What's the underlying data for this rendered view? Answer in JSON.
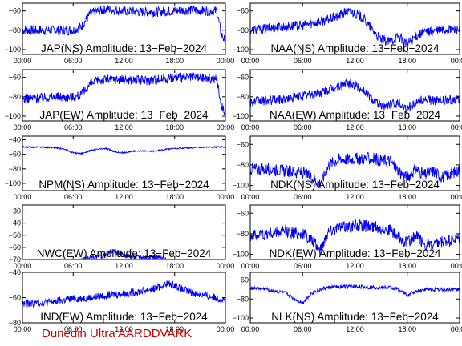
{
  "footer": {
    "text": "Dunedin Ultra AARDDVARK",
    "color": "#cc0000"
  },
  "colors": {
    "trace": "#0000ff",
    "axis": "#000000",
    "label": "#000000"
  },
  "chart_data": [
    {
      "type": "line",
      "title": "JAP(NS) Amplitude: 13−Feb−2024",
      "x_tick_labels": [
        "00:00",
        "06:00",
        "12:00",
        "18:00",
        "00:00"
      ],
      "x_ticks_hours": [
        0,
        6,
        12,
        18,
        24
      ],
      "ylim": [
        -105,
        -52
      ],
      "y_ticks": [
        -100,
        -80,
        -60
      ],
      "y_tick_labels": [
        "−100",
        "−80",
        "−60"
      ],
      "series": [
        {
          "x": [
            0,
            2,
            4,
            5,
            6,
            7,
            8,
            9,
            10,
            12,
            14,
            16,
            18,
            20,
            22,
            23,
            23.5,
            24
          ],
          "y": [
            -80,
            -80,
            -80,
            -80,
            -80,
            -76,
            -63,
            -60,
            -58,
            -60,
            -61,
            -61,
            -60,
            -59,
            -60,
            -60,
            -84,
            -92
          ],
          "band": 5
        }
      ]
    },
    {
      "type": "line",
      "title": "NAA(NS) Amplitude: 13−Feb−2024",
      "x_tick_labels": [
        "00:00",
        "06:00",
        "12:00",
        "18:00",
        "00:00"
      ],
      "x_ticks_hours": [
        0,
        6,
        12,
        18,
        24
      ],
      "ylim": [
        -105,
        -52
      ],
      "y_ticks": [
        -100,
        -80,
        -60
      ],
      "y_tick_labels": [
        "−100",
        "−80",
        "−60"
      ],
      "series": [
        {
          "x": [
            0,
            2,
            4,
            6,
            8,
            10,
            11,
            12,
            13,
            14,
            15,
            16,
            17,
            18,
            19,
            20,
            22,
            24
          ],
          "y": [
            -80,
            -78,
            -76,
            -75,
            -71,
            -66,
            -61,
            -62,
            -68,
            -80,
            -90,
            -92,
            -86,
            -94,
            -86,
            -82,
            -80,
            -79
          ],
          "band": 5
        }
      ]
    },
    {
      "type": "line",
      "title": "JAP(EW) Amplitude: 13−Feb−2024",
      "x_tick_labels": [
        "00:00",
        "06:00",
        "12:00",
        "18:00",
        "00:00"
      ],
      "x_ticks_hours": [
        0,
        6,
        12,
        18,
        24
      ],
      "ylim": [
        -105,
        -52
      ],
      "y_ticks": [
        -100,
        -80,
        -60
      ],
      "y_tick_labels": [
        "−100",
        "−80",
        "−60"
      ],
      "series": [
        {
          "x": [
            0,
            2,
            4,
            5,
            6,
            7,
            8,
            9,
            10,
            12,
            14,
            16,
            18,
            20,
            22,
            23,
            23.5,
            24
          ],
          "y": [
            -82,
            -81,
            -80,
            -80,
            -80,
            -78,
            -67,
            -63,
            -62,
            -62,
            -63,
            -62,
            -60,
            -60,
            -61,
            -62,
            -88,
            -96
          ],
          "band": 5
        }
      ]
    },
    {
      "type": "line",
      "title": "NAA(EW) Amplitude: 13−Feb−2024",
      "x_tick_labels": [
        "00:00",
        "06:00",
        "12:00",
        "18:00",
        "00:00"
      ],
      "x_ticks_hours": [
        0,
        6,
        12,
        18,
        24
      ],
      "ylim": [
        -105,
        -52
      ],
      "y_ticks": [
        -100,
        -80,
        -60
      ],
      "y_tick_labels": [
        "−100",
        "−80",
        "−60"
      ],
      "series": [
        {
          "x": [
            0,
            2,
            4,
            6,
            8,
            10,
            11,
            12,
            13,
            14,
            15,
            16,
            17,
            18,
            19,
            20,
            22,
            24
          ],
          "y": [
            -85,
            -84,
            -82,
            -79,
            -76,
            -70,
            -66,
            -68,
            -73,
            -82,
            -90,
            -88,
            -86,
            -92,
            -85,
            -83,
            -84,
            -82
          ],
          "band": 5
        }
      ]
    },
    {
      "type": "line",
      "title": "NPM(NS) Amplitude: 13−Feb−2024",
      "x_tick_labels": [
        "00:00",
        "06:00",
        "12:00",
        "18:00",
        "00:00"
      ],
      "x_ticks_hours": [
        0,
        6,
        12,
        18,
        24
      ],
      "ylim": [
        -110,
        -35
      ],
      "y_ticks": [
        -100,
        -80,
        -60,
        -40
      ],
      "y_tick_labels": [
        "−100",
        "−80",
        "−60",
        "−40"
      ],
      "series": [
        {
          "x": [
            0,
            2,
            4,
            5,
            6,
            7,
            8,
            9,
            10,
            11,
            12,
            13,
            14,
            15,
            16,
            17,
            18,
            20,
            22,
            24
          ],
          "y": [
            -50,
            -50,
            -51,
            -53,
            -58,
            -59,
            -55,
            -53,
            -52,
            -57,
            -58,
            -56,
            -55,
            -56,
            -55,
            -53,
            -52,
            -51,
            -50,
            -50
          ],
          "band": 1
        }
      ]
    },
    {
      "type": "line",
      "title": "NDK(NS) Amplitude: 13−Feb−2024",
      "x_tick_labels": [
        "00:00",
        "06:00",
        "12:00",
        "18:00",
        "00:00"
      ],
      "x_ticks_hours": [
        0,
        6,
        12,
        18,
        24
      ],
      "ylim": [
        -105,
        -52
      ],
      "y_ticks": [
        -100,
        -80,
        -60
      ],
      "y_tick_labels": [
        "−100",
        "−80",
        "−60"
      ],
      "series": [
        {
          "x": [
            0,
            2,
            4,
            6,
            7,
            8,
            8.5,
            9,
            10,
            12,
            14,
            16,
            17,
            18,
            19,
            20,
            21,
            22,
            24
          ],
          "y": [
            -84,
            -84,
            -86,
            -88,
            -92,
            -98,
            -90,
            -80,
            -75,
            -74,
            -74,
            -76,
            -86,
            -92,
            -84,
            -90,
            -86,
            -92,
            -85
          ],
          "band": 6
        }
      ]
    },
    {
      "type": "line",
      "title": "NWC(EW) Amplitude: 13−Feb−2024",
      "x_tick_labels": [
        "00:00",
        "06:00",
        "12:00",
        "18:00",
        "00:00"
      ],
      "x_ticks_hours": [
        0,
        6,
        12,
        18,
        24
      ],
      "ylim": [
        -70,
        -25
      ],
      "y_ticks": [
        -70,
        -60,
        -50,
        -40,
        -30
      ],
      "y_tick_labels": [
        "−70",
        "−60",
        "−50",
        "−40",
        "−30"
      ],
      "series": [
        {
          "x": [
            7,
            8,
            9,
            10,
            10.5,
            11,
            12,
            13,
            14,
            15,
            16,
            17
          ],
          "y": [
            -70,
            -69,
            -68,
            -66,
            -63,
            -64,
            -66,
            -68,
            -68,
            -68,
            -68,
            -70
          ],
          "band": 2
        }
      ]
    },
    {
      "type": "line",
      "title": "NDK(EW) Amplitude: 13−Feb−2024",
      "x_tick_labels": [
        "00:00",
        "06:00",
        "12:00",
        "18:00",
        "00:00"
      ],
      "x_ticks_hours": [
        0,
        6,
        12,
        18,
        24
      ],
      "ylim": [
        -105,
        -52
      ],
      "y_ticks": [
        -100,
        -80,
        -60
      ],
      "y_tick_labels": [
        "−100",
        "−80",
        "−60"
      ],
      "series": [
        {
          "x": [
            0,
            2,
            4,
            6,
            7,
            8,
            8.5,
            9,
            10,
            12,
            14,
            16,
            17,
            18,
            19,
            20,
            21,
            22,
            24
          ],
          "y": [
            -82,
            -80,
            -78,
            -80,
            -86,
            -96,
            -86,
            -77,
            -74,
            -72,
            -73,
            -76,
            -84,
            -88,
            -82,
            -90,
            -92,
            -88,
            -85
          ],
          "band": 6
        }
      ]
    },
    {
      "type": "line",
      "title": "IND(EW) Amplitude: 13−Feb−2024",
      "x_tick_labels": [
        "00:00",
        "06:00",
        "12:00",
        "18:00",
        "00:00"
      ],
      "x_ticks_hours": [
        0,
        6,
        12,
        18,
        24
      ],
      "ylim": [
        -80,
        -40
      ],
      "y_ticks": [
        -80,
        -60,
        -40
      ],
      "y_tick_labels": [
        "−80",
        "−60",
        "−40"
      ],
      "series": [
        {
          "x": [
            0,
            2,
            4,
            6,
            8,
            10,
            12,
            14,
            16,
            17,
            18,
            19,
            20,
            22,
            24
          ],
          "y": [
            -65,
            -64,
            -63,
            -61,
            -60,
            -58,
            -57,
            -55,
            -52,
            -49,
            -50,
            -54,
            -56,
            -59,
            -62
          ],
          "band": 3
        }
      ]
    },
    {
      "type": "line",
      "title": "NLK(NS) Amplitude: 13−Feb−2024",
      "x_tick_labels": [
        "00:00",
        "06:00",
        "12:00",
        "18:00",
        "00:00"
      ],
      "x_ticks_hours": [
        0,
        6,
        12,
        18,
        24
      ],
      "ylim": [
        -105,
        -52
      ],
      "y_ticks": [
        -100,
        -80,
        -60
      ],
      "y_tick_labels": [
        "−100",
        "−80",
        "−60"
      ],
      "series": [
        {
          "x": [
            0,
            2,
            4,
            5,
            6,
            7,
            8,
            9,
            10,
            12,
            14,
            16,
            17,
            18,
            19,
            20,
            22,
            24
          ],
          "y": [
            -68,
            -70,
            -74,
            -80,
            -84,
            -74,
            -70,
            -68,
            -67,
            -67,
            -68,
            -68,
            -70,
            -76,
            -72,
            -70,
            -70,
            -70
          ],
          "band": 2
        }
      ]
    }
  ]
}
